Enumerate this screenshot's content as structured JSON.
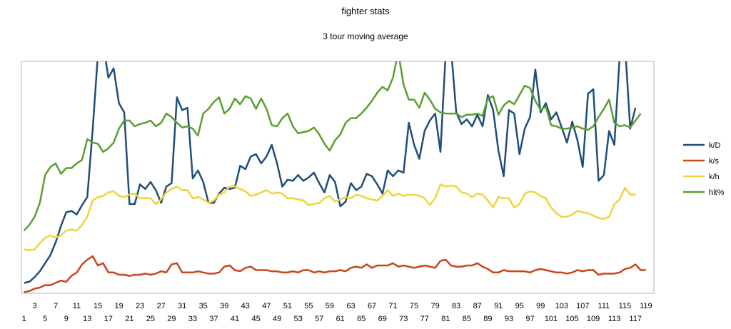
{
  "chart_data": {
    "type": "line",
    "title": "fighter stats",
    "subtitle": "3 tour moving average",
    "xlabel": "",
    "ylabel": "",
    "x_start": 1,
    "x_end": 120,
    "x_ticks_row1": [
      "3",
      "7",
      "11",
      "15",
      "19",
      "23",
      "27",
      "31",
      "35",
      "39",
      "43",
      "47",
      "51",
      "55",
      "59",
      "63",
      "67",
      "71",
      "75",
      "79",
      "83",
      "87",
      "91",
      "95",
      "99",
      "103",
      "107",
      "111",
      "115",
      "119"
    ],
    "x_ticks_row2": [
      "1",
      "5",
      "9",
      "13",
      "17",
      "21",
      "25",
      "29",
      "33",
      "37",
      "41",
      "45",
      "49",
      "53",
      "57",
      "61",
      "65",
      "69",
      "73",
      "77",
      "81",
      "85",
      "89",
      "93",
      "97",
      "101",
      "105",
      "109",
      "113",
      "117"
    ],
    "ylim": [
      0,
      100
    ],
    "grid": false,
    "legend_position": "right",
    "series": [
      {
        "name": "k/D",
        "color": "#1f4e79",
        "values": [
          4.5,
          5.0,
          7.0,
          9.5,
          13.0,
          16.5,
          22.0,
          29.0,
          35.0,
          35.5,
          34.0,
          38.0,
          41.5,
          70.0,
          103.0,
          108.0,
          93.0,
          97.0,
          82.0,
          78.0,
          38.5,
          38.5,
          47.0,
          45.0,
          48.0,
          44.5,
          39.0,
          46.0,
          47.5,
          84.5,
          79.0,
          80.0,
          49.5,
          53.0,
          48.0,
          39.0,
          39.0,
          43.0,
          45.5,
          45.0,
          45.5,
          55.0,
          53.5,
          59.0,
          60.0,
          56.0,
          59.0,
          64.0,
          56.0,
          46.0,
          49.0,
          48.5,
          51.0,
          48.5,
          50.0,
          52.0,
          47.5,
          43.5,
          51.0,
          48.0,
          37.5,
          39.5,
          47.5,
          44.5,
          46.0,
          51.5,
          50.5,
          47.0,
          43.0,
          53.0,
          50.5,
          53.0,
          52.0,
          73.5,
          64.0,
          58.0,
          70.0,
          74.5,
          77.5,
          61.0,
          104.0,
          106.0,
          78.0,
          73.0,
          75.0,
          72.0,
          77.0,
          72.0,
          85.5,
          79.0,
          61.5,
          50.5,
          79.0,
          77.5,
          60.0,
          71.0,
          76.0,
          96.5,
          78.0,
          82.0,
          75.0,
          78.0,
          71.5,
          65.0,
          74.0,
          66.0,
          54.5,
          86.0,
          88.0,
          48.5,
          51.0,
          70.0,
          64.0,
          102.0,
          108.0,
          71.0,
          80.0
        ],
        "line_width": 2.5
      },
      {
        "name": "k/s",
        "color": "#c8461c",
        "values": [
          0.5,
          1.0,
          2.0,
          2.5,
          3.5,
          3.5,
          4.5,
          5.5,
          5.0,
          7.5,
          9.0,
          12.5,
          14.5,
          16.0,
          12.0,
          13.0,
          9.0,
          9.0,
          8.0,
          8.0,
          7.5,
          8.0,
          8.0,
          8.5,
          8.0,
          8.5,
          9.5,
          9.0,
          12.5,
          13.0,
          9.0,
          9.0,
          9.0,
          9.5,
          9.0,
          8.5,
          8.5,
          9.0,
          11.5,
          12.0,
          10.0,
          9.5,
          11.0,
          11.5,
          10.0,
          10.0,
          10.0,
          9.5,
          9.5,
          9.0,
          9.0,
          9.5,
          9.0,
          10.0,
          10.0,
          9.0,
          9.5,
          9.0,
          9.5,
          9.5,
          10.0,
          9.5,
          11.0,
          11.5,
          11.0,
          12.5,
          11.0,
          12.0,
          12.0,
          12.0,
          13.0,
          11.5,
          12.0,
          11.5,
          11.0,
          11.5,
          12.0,
          11.5,
          11.0,
          14.0,
          14.5,
          12.0,
          11.5,
          11.5,
          12.0,
          12.0,
          13.0,
          11.5,
          10.5,
          9.0,
          9.0,
          10.0,
          9.5,
          9.5,
          9.5,
          9.5,
          9.0,
          10.0,
          10.5,
          10.0,
          9.5,
          9.0,
          9.0,
          8.5,
          9.0,
          10.0,
          9.5,
          10.0,
          10.0,
          8.0,
          8.5,
          8.5,
          8.5,
          9.0,
          10.5,
          11.0,
          12.5,
          10.0,
          10.0
        ],
        "line_width": 2.5
      },
      {
        "name": "k/h",
        "color": "#f2d33c",
        "values": [
          19.0,
          18.5,
          19.0,
          21.5,
          24.0,
          25.0,
          24.0,
          25.0,
          27.0,
          27.5,
          27.0,
          29.5,
          33.0,
          40.0,
          41.5,
          42.0,
          43.5,
          44.0,
          42.0,
          41.5,
          42.5,
          43.0,
          41.0,
          41.0,
          41.0,
          38.5,
          40.5,
          43.5,
          45.0,
          46.0,
          44.5,
          44.5,
          41.0,
          41.5,
          40.5,
          39.0,
          40.0,
          42.5,
          43.5,
          46.0,
          46.0,
          45.0,
          44.0,
          42.0,
          42.5,
          43.5,
          44.5,
          43.0,
          43.5,
          43.0,
          41.0,
          41.0,
          40.5,
          40.0,
          38.0,
          38.5,
          39.0,
          41.0,
          42.0,
          39.5,
          40.5,
          41.5,
          41.0,
          42.5,
          42.0,
          41.0,
          40.5,
          40.0,
          42.0,
          44.5,
          42.0,
          43.0,
          42.0,
          42.5,
          42.5,
          42.0,
          41.0,
          38.0,
          41.0,
          47.0,
          46.0,
          46.5,
          46.0,
          43.5,
          43.0,
          41.5,
          43.0,
          42.5,
          40.0,
          37.0,
          41.5,
          41.0,
          41.0,
          37.0,
          38.5,
          43.0,
          44.0,
          43.5,
          42.0,
          41.0,
          37.0,
          34.5,
          33.0,
          33.0,
          34.0,
          35.5,
          35.0,
          34.5,
          33.5,
          32.5,
          32.0,
          33.0,
          38.5,
          40.5,
          45.5,
          42.5,
          42.5
        ],
        "line_width": 2.5
      },
      {
        "name": "hit%",
        "color": "#59a02e",
        "values": [
          27.0,
          29.5,
          33.0,
          39.0,
          51.0,
          54.5,
          56.0,
          51.5,
          54.0,
          54.0,
          56.0,
          57.5,
          66.5,
          65.0,
          64.5,
          61.0,
          62.5,
          65.0,
          71.0,
          74.5,
          74.5,
          72.0,
          73.0,
          73.5,
          74.5,
          72.0,
          73.5,
          77.5,
          76.0,
          73.5,
          71.5,
          72.0,
          71.0,
          68.0,
          77.5,
          79.5,
          82.5,
          84.5,
          77.5,
          79.5,
          84.0,
          81.5,
          85.0,
          84.0,
          79.5,
          84.0,
          79.5,
          72.5,
          72.0,
          75.5,
          77.5,
          72.0,
          69.0,
          69.5,
          70.0,
          71.5,
          68.5,
          64.5,
          61.5,
          66.0,
          68.5,
          73.5,
          75.5,
          75.5,
          77.5,
          80.0,
          83.0,
          86.5,
          89.0,
          87.5,
          93.0,
          104.0,
          90.0,
          83.5,
          83.5,
          80.0,
          86.5,
          83.5,
          79.5,
          78.0,
          77.5,
          77.5,
          77.5,
          76.0,
          77.0,
          77.0,
          77.5,
          76.5,
          84.0,
          85.0,
          77.0,
          81.0,
          83.0,
          81.5,
          85.5,
          89.5,
          88.5,
          83.0,
          79.0,
          80.5,
          72.5,
          72.0,
          71.0,
          71.0,
          71.5,
          72.0,
          71.0,
          70.5,
          72.0,
          76.0,
          79.5,
          83.5,
          73.5,
          72.0,
          72.5,
          71.5,
          74.5,
          77.5
        ]
      }
    ]
  }
}
